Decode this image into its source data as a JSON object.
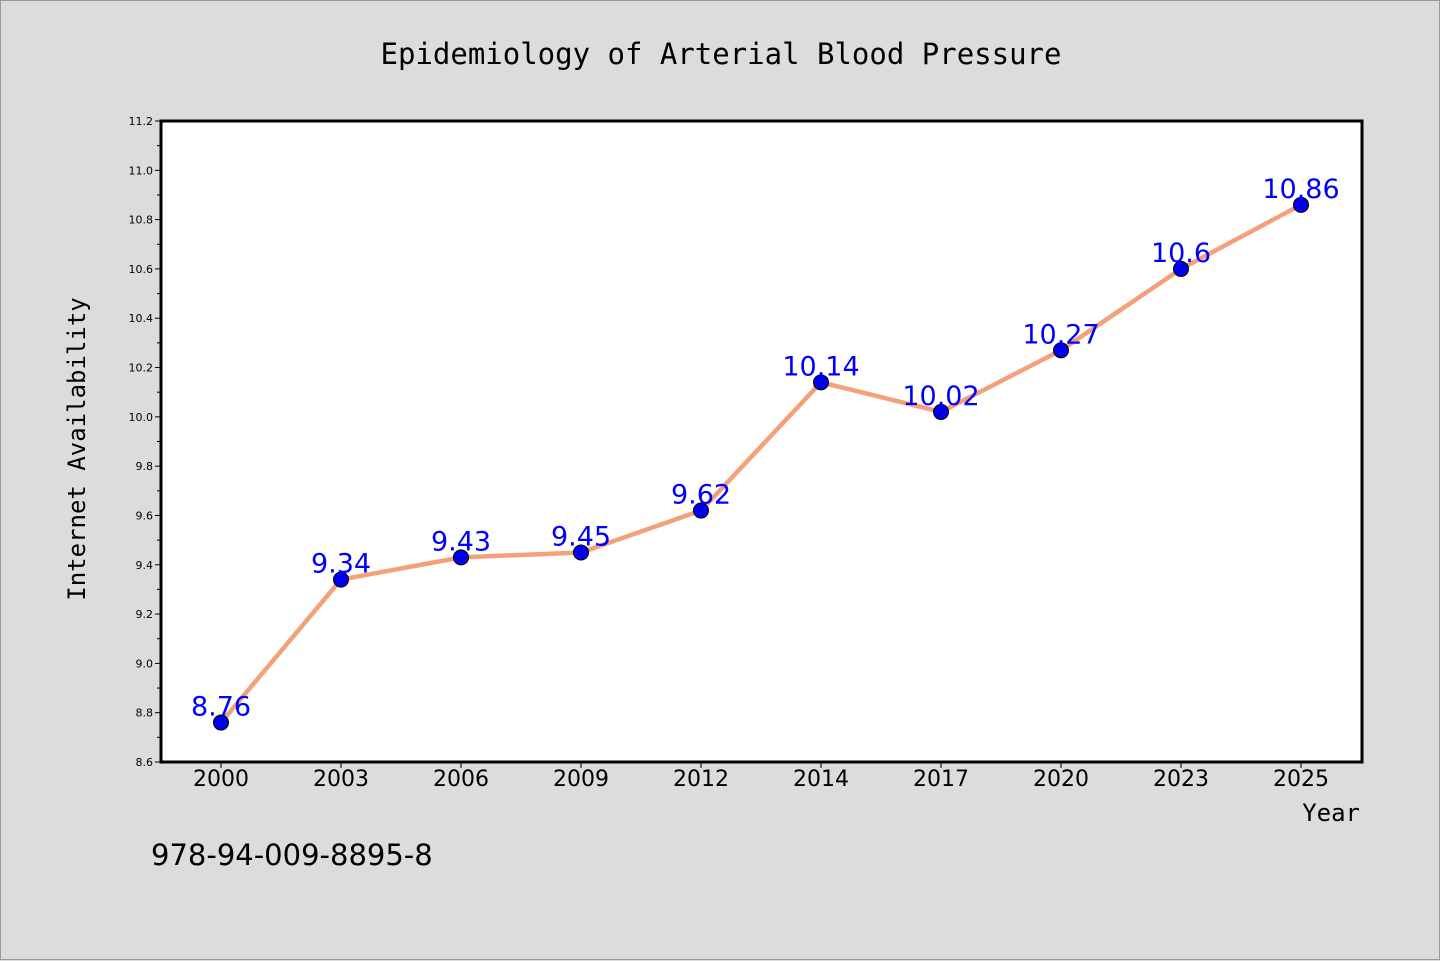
{
  "chart_data": {
    "type": "line",
    "title": "Epidemiology of Arterial Blood Pressure",
    "xlabel": "Year",
    "ylabel": "Internet Availability",
    "categories": [
      "2000",
      "2003",
      "2006",
      "2009",
      "2012",
      "2014",
      "2017",
      "2020",
      "2023",
      "2025"
    ],
    "series": [
      {
        "values": [
          8.76,
          9.34,
          9.43,
          9.45,
          9.62,
          10.14,
          10.02,
          10.27,
          10.6,
          10.86
        ],
        "labels": [
          "8.76",
          "9.34",
          "9.43",
          "9.45",
          "9.62",
          "10.14",
          "10.02",
          "10.27",
          "10.6",
          "10.86"
        ]
      }
    ],
    "ylim": [
      8.6,
      11.2
    ],
    "yticks": [
      8.6,
      8.8,
      9.0,
      9.2,
      9.4,
      9.6,
      9.8,
      10.0,
      10.2,
      10.4,
      10.6,
      10.8,
      11.0,
      11.2
    ],
    "ytick_labels": [
      "8.6",
      "8.8",
      "9.0",
      "9.2",
      "9.4",
      "9.6",
      "9.8",
      "10.0",
      "10.2",
      "10.4",
      "10.6",
      "10.8",
      "11.0",
      "11.2"
    ],
    "grid": false,
    "colors": {
      "line": "#f4a07a",
      "marker": "#0000ee",
      "data_label": "#0000ff",
      "background": "#dcdcdc",
      "plot_background": "#ffffff"
    }
  },
  "footer_code": "978-94-009-8895-8"
}
